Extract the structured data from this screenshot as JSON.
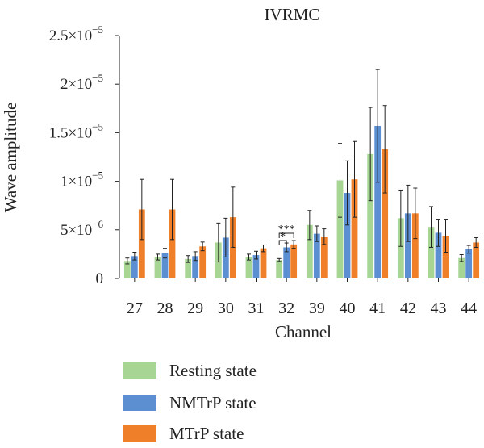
{
  "chart_data": {
    "type": "bar",
    "title": "IVRMC",
    "xlabel": "Channel",
    "ylabel": "Wave amplitude",
    "ylim": [
      0,
      2.5e-05
    ],
    "yticks": [
      0,
      5e-06,
      1e-05,
      1.5e-05,
      2e-05,
      2.5e-05
    ],
    "ytick_labels": [
      {
        "mant": "0",
        "exp": ""
      },
      {
        "mant": "5×10",
        "exp": "−6"
      },
      {
        "mant": "1×10",
        "exp": "−5"
      },
      {
        "mant": "1.5×10",
        "exp": "−5"
      },
      {
        "mant": "2×10",
        "exp": "−5"
      },
      {
        "mant": "2.5×10",
        "exp": "−5"
      }
    ],
    "categories": [
      "27",
      "28",
      "29",
      "30",
      "31",
      "32",
      "39",
      "40",
      "41",
      "42",
      "43",
      "44"
    ],
    "series": [
      {
        "name": "Resting state",
        "color": "#a6d594",
        "values": [
          1.8e-06,
          2.2e-06,
          2e-06,
          3.7e-06,
          2.2e-06,
          1.9e-06,
          5.5e-06,
          1.01e-05,
          1.28e-05,
          6.2e-06,
          5.3e-06,
          2.1e-06
        ],
        "errors": [
          3e-07,
          3e-07,
          3.5e-07,
          2e-06,
          3e-07,
          1.5e-07,
          1.5e-06,
          3.8e-06,
          4.8e-06,
          2.9e-06,
          2.1e-06,
          3.5e-07
        ]
      },
      {
        "name": "NMTrP state",
        "color": "#5b8fd1",
        "values": [
          2.3e-06,
          2.6e-06,
          2.3e-06,
          4.2e-06,
          2.4e-06,
          3.2e-06,
          4.6e-06,
          8.8e-06,
          1.57e-05,
          6.7e-06,
          4.7e-06,
          3e-06
        ],
        "errors": [
          4e-07,
          5e-07,
          4.5e-07,
          2e-06,
          4e-07,
          4.5e-07,
          8e-07,
          3.3e-06,
          5.8e-06,
          2.9e-06,
          1.4e-06,
          4e-07
        ]
      },
      {
        "name": "MTrP state",
        "color": "#f07f29",
        "values": [
          7.1e-06,
          7.1e-06,
          3.3e-06,
          6.3e-06,
          3.1e-06,
          3.5e-06,
          4.3e-06,
          1.02e-05,
          1.33e-05,
          6.7e-06,
          4.4e-06,
          3.7e-06
        ],
        "errors": [
          3.1e-06,
          3.1e-06,
          4.5e-07,
          3.1e-06,
          3.5e-07,
          4e-07,
          8e-07,
          3.9e-06,
          4.5e-06,
          2.6e-06,
          1.7e-06,
          5e-07
        ]
      }
    ],
    "annotations": [
      {
        "category": "32",
        "text": "***",
        "from_series": 0,
        "to_series": 2
      },
      {
        "category": "32",
        "text": "*",
        "from_series": 0,
        "to_series": 1
      }
    ],
    "legend_position": "bottom-left",
    "grid": false
  }
}
